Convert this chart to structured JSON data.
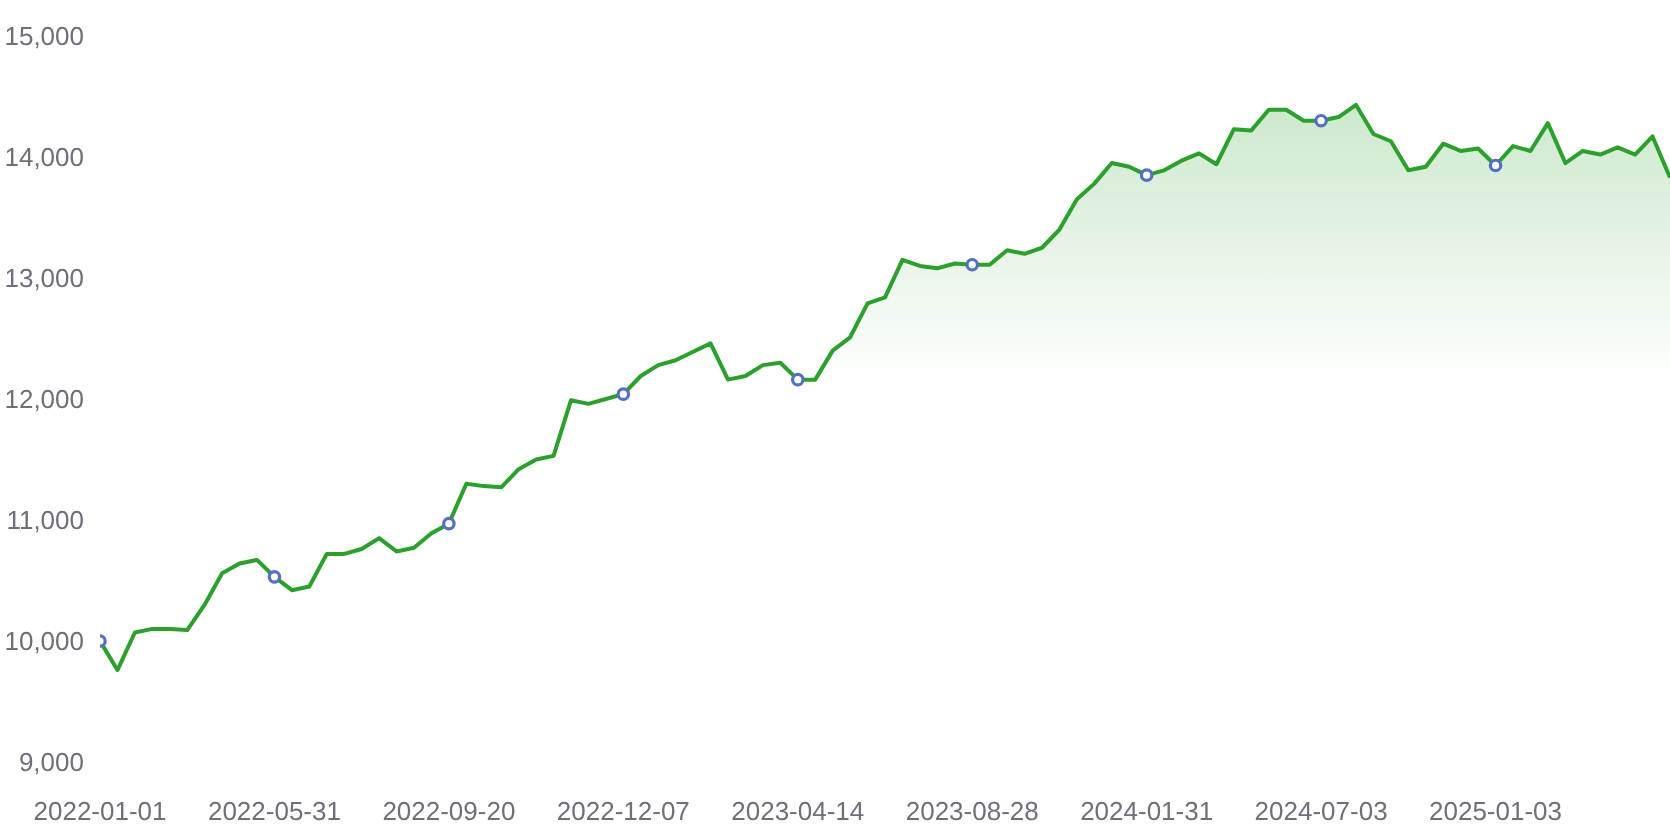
{
  "chart_data": {
    "type": "area",
    "categories": [
      "2022-01-01",
      null,
      null,
      null,
      null,
      null,
      null,
      null,
      null,
      null,
      "2022-05-31",
      null,
      null,
      null,
      null,
      null,
      null,
      null,
      null,
      null,
      "2022-09-20",
      null,
      null,
      null,
      null,
      null,
      null,
      null,
      null,
      null,
      "2022-12-07",
      null,
      null,
      null,
      null,
      null,
      null,
      null,
      null,
      null,
      "2023-04-14",
      null,
      null,
      null,
      null,
      null,
      null,
      null,
      null,
      null,
      "2023-08-28",
      null,
      null,
      null,
      null,
      null,
      null,
      null,
      null,
      null,
      "2024-01-31",
      null,
      null,
      null,
      null,
      null,
      null,
      null,
      null,
      null,
      "2024-07-03",
      null,
      null,
      null,
      null,
      null,
      null,
      null,
      null,
      null,
      "2025-01-03",
      null,
      null,
      null,
      null,
      null,
      null,
      null,
      null,
      null,
      null
    ],
    "series": [
      {
        "color": "#2ca02c",
        "values": [
          10000,
          9760,
          10070,
          10100,
          10100,
          10090,
          10300,
          10560,
          10640,
          10670,
          10530,
          10420,
          10450,
          10720,
          10720,
          10760,
          10850,
          10740,
          10770,
          10890,
          10970,
          11300,
          11280,
          11270,
          11420,
          11500,
          11530,
          11990,
          11960,
          12000,
          12040,
          12190,
          12280,
          12320,
          12390,
          12460,
          12160,
          12190,
          12280,
          12300,
          12160,
          12160,
          12400,
          12510,
          12790,
          12840,
          13150,
          13100,
          13080,
          13120,
          13110,
          13110,
          13230,
          13200,
          13250,
          13400,
          13650,
          13780,
          13950,
          13920,
          13850,
          13890,
          13970,
          14030,
          13940,
          14230,
          14220,
          14390,
          14390,
          14300,
          14300,
          14330,
          14430,
          14190,
          14130,
          13890,
          13920,
          14110,
          14050,
          14070,
          13930,
          14090,
          14050,
          14280,
          13950,
          14050,
          14020,
          14080,
          14020,
          14170,
          13830
        ]
      },
      {
        "type": "scatter",
        "color": "#5470c6",
        "marker": "circle",
        "values": [
          10000,
          null,
          null,
          null,
          null,
          null,
          null,
          null,
          null,
          null,
          10530,
          null,
          null,
          null,
          null,
          null,
          null,
          null,
          null,
          null,
          10970,
          null,
          null,
          null,
          null,
          null,
          null,
          null,
          null,
          null,
          12040,
          null,
          null,
          null,
          null,
          null,
          null,
          null,
          null,
          null,
          12160,
          null,
          null,
          null,
          null,
          null,
          null,
          null,
          null,
          null,
          13110,
          null,
          null,
          null,
          null,
          null,
          null,
          null,
          null,
          null,
          13850,
          null,
          null,
          null,
          null,
          null,
          null,
          null,
          null,
          null,
          14300,
          null,
          null,
          null,
          null,
          null,
          null,
          null,
          null,
          null,
          13930,
          null,
          null,
          null,
          null,
          null,
          null,
          null,
          null,
          null,
          null
        ]
      }
    ],
    "ylim": [
      9000,
      15000
    ],
    "yticks": [
      {
        "value": 9000,
        "label": "9,000"
      },
      {
        "value": 10000,
        "label": "10,000"
      },
      {
        "value": 11000,
        "label": "11,000"
      },
      {
        "value": 12000,
        "label": "12,000"
      },
      {
        "value": 13000,
        "label": "13,000"
      },
      {
        "value": 14000,
        "label": "14,000"
      },
      {
        "value": 15000,
        "label": "15,000"
      }
    ],
    "grid": false
  }
}
